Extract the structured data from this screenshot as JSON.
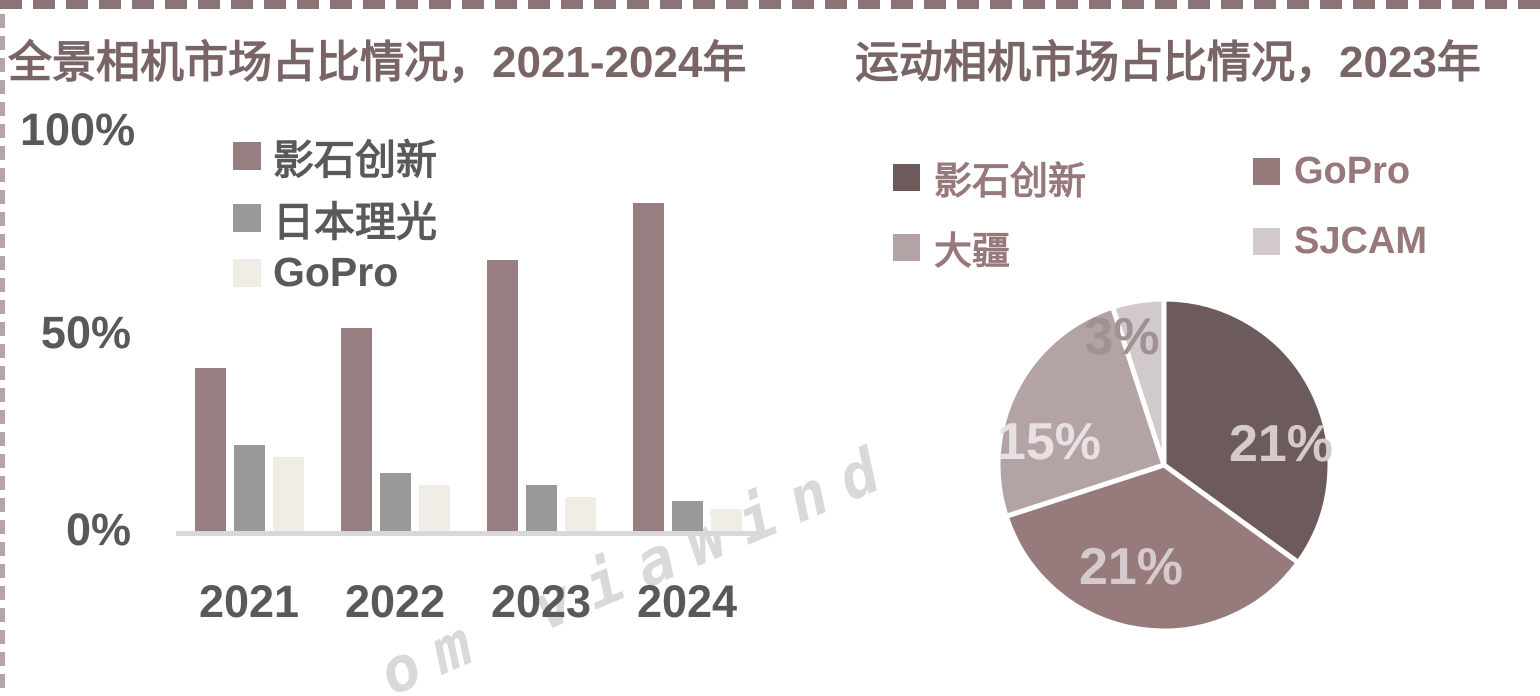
{
  "frame": {
    "top_dash_color": "#8a7475",
    "left_dash_color": "#b5a3a5"
  },
  "watermark": {
    "text": "om viaWind",
    "color": "#d9d9d9"
  },
  "chart_data": [
    {
      "type": "bar",
      "title": "全景相机市场占比情况，2021-2024年",
      "title_color": "#7a6566",
      "categories": [
        "2021",
        "2022",
        "2023",
        "2024"
      ],
      "series": [
        {
          "name": "影石创新",
          "color": "#977e80",
          "values": [
            41,
            51,
            68,
            82
          ]
        },
        {
          "name": "日本理光",
          "color": "#9a9998",
          "values": [
            22,
            15,
            12,
            8
          ]
        },
        {
          "name": "GoPro",
          "color": "#f0ece6",
          "values": [
            19,
            12,
            9,
            6
          ]
        }
      ],
      "unit": "%",
      "xlabel": "",
      "ylabel": "",
      "ylim": [
        0,
        100
      ],
      "y_ticks": [
        "100%",
        "50%",
        "0%"
      ],
      "grid": false,
      "legend_position": "top-center-inside",
      "axis_line_color": "#d8d8d8",
      "tick_label_color": "#595959"
    },
    {
      "type": "pie",
      "title": "运动相机市场占比情况，2023年",
      "title_color": "#7a6566",
      "start_angle_deg": 0,
      "direction": "clockwise",
      "separator_color": "#ffffff",
      "legend_text_color": "#98797b",
      "legend_position": "top",
      "slices": [
        {
          "name": "影石创新",
          "value": 21,
          "label": "21%",
          "color": "#6d5b5c",
          "label_color": "#d5cbcc"
        },
        {
          "name": "GoPro",
          "value": 21,
          "label": "21%",
          "color": "#967a7c",
          "label_color": "#d5cbcc"
        },
        {
          "name": "大疆",
          "value": 15,
          "label": "15%",
          "color": "#b3a3a5",
          "label_color": "#e7e1e1"
        },
        {
          "name": "SJCAM",
          "value": 3,
          "label": "3%",
          "color": "#d2c9ca",
          "label_color": "#a09192"
        }
      ]
    }
  ]
}
